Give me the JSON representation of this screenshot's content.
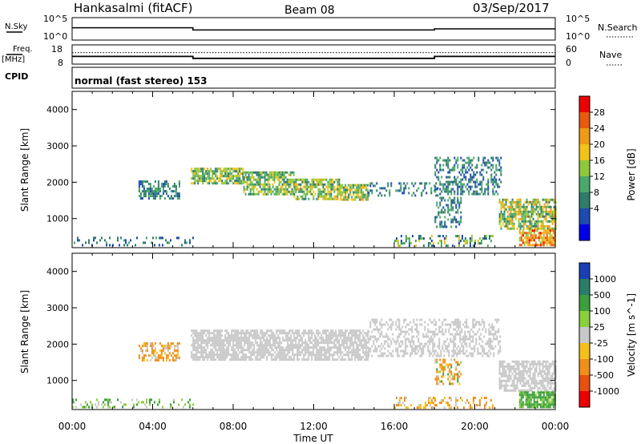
{
  "header": {
    "station": "Hankasalmi (fitACF)",
    "beam": "Beam 08",
    "date": "03/Sep/2017"
  },
  "top_panels": {
    "nsky_label": "N.Sky",
    "nsky_ticks": [
      "10^5",
      "10^0"
    ],
    "nsearch_label": "N.Search",
    "nsearch_ticks": [
      "10^5",
      "10^0"
    ],
    "freq_label_1": "Freq.",
    "freq_label_2": "[MHz]",
    "freq_ticks": [
      "18",
      "8"
    ],
    "nave_label": "Nave",
    "nave_ticks": [
      "60",
      "0"
    ],
    "cpid_label": "CPID",
    "cpid_text": "normal (fast stereo) 153"
  },
  "axes": {
    "xlabel": "Time UT",
    "x_ticks": [
      "00:00",
      "04:00",
      "08:00",
      "12:00",
      "16:00",
      "20:00",
      "00:00"
    ],
    "ylabel": "Slant Range [km]",
    "y_ticks": [
      "1000",
      "2000",
      "3000",
      "4000"
    ]
  },
  "power_scale": {
    "label": "Power [dB]",
    "ticks": [
      "4",
      "8",
      "12",
      "16",
      "20",
      "24",
      "28"
    ],
    "colors": [
      "#0000e8",
      "#1e4bb0",
      "#2e7d6a",
      "#4aa86a",
      "#8fc93a",
      "#f2c318",
      "#f29a18",
      "#e85a10",
      "#ee0000"
    ]
  },
  "velocity_scale": {
    "label": "Velocity [m s^-1]",
    "ticks": [
      "1000",
      "500",
      "100",
      "25",
      "-25",
      "-100",
      "-500",
      "-1000"
    ],
    "colors": [
      "#1a3fb5",
      "#2a7d6a",
      "#3c9e3c",
      "#8ad03a",
      "#c8c8c8",
      "#f5c01a",
      "#f0901a",
      "#e85010",
      "#ee0000"
    ]
  },
  "chart_data": [
    {
      "type": "line",
      "title": "N.Sky / N.Search",
      "x_range_hours": [
        0,
        24
      ],
      "segments": [
        {
          "from": 0,
          "to": 6,
          "level": 0.45
        },
        {
          "from": 6,
          "to": 18,
          "level": 0.55
        },
        {
          "from": 18,
          "to": 24,
          "level": 0.5
        }
      ]
    },
    {
      "type": "line",
      "title": "Freq. [MHz] / Nave",
      "x_range_hours": [
        0,
        24
      ],
      "ylim": [
        8,
        18
      ],
      "segments": [
        {
          "from": 0,
          "to": 6,
          "value": 12
        },
        {
          "from": 6,
          "to": 18,
          "value": 11
        },
        {
          "from": 18,
          "to": 24,
          "value": 12
        }
      ],
      "nave_level": 14
    },
    {
      "type": "heatmap",
      "title": "Power [dB]",
      "xlabel": "Time UT",
      "ylabel": "Slant Range [km]",
      "x_range_hours": [
        0,
        24
      ],
      "ylim": [
        200,
        4500
      ],
      "regions": [
        {
          "t0": 0.0,
          "t1": 6.0,
          "r0": 250,
          "r1": 500,
          "pmin": 4,
          "pmax": 12,
          "density": 0.25
        },
        {
          "t0": 3.3,
          "t1": 5.3,
          "r0": 1550,
          "r1": 2050,
          "pmin": 4,
          "pmax": 14,
          "density": 0.5
        },
        {
          "t0": 5.9,
          "t1": 8.5,
          "r0": 1950,
          "r1": 2400,
          "pmin": 8,
          "pmax": 22,
          "density": 0.75
        },
        {
          "t0": 8.5,
          "t1": 11.0,
          "r0": 1650,
          "r1": 2300,
          "pmin": 8,
          "pmax": 20,
          "density": 0.75
        },
        {
          "t0": 11.0,
          "t1": 13.3,
          "r0": 1550,
          "r1": 2100,
          "pmin": 8,
          "pmax": 22,
          "density": 0.7
        },
        {
          "t0": 13.3,
          "t1": 14.7,
          "r0": 1550,
          "r1": 1950,
          "pmin": 8,
          "pmax": 22,
          "density": 0.8
        },
        {
          "t0": 14.7,
          "t1": 18.2,
          "r0": 1650,
          "r1": 2000,
          "pmin": 4,
          "pmax": 12,
          "density": 0.3
        },
        {
          "t0": 18.0,
          "t1": 21.3,
          "r0": 1700,
          "r1": 2700,
          "pmin": 4,
          "pmax": 14,
          "density": 0.45
        },
        {
          "t0": 18.0,
          "t1": 19.3,
          "r0": 800,
          "r1": 1600,
          "pmin": 4,
          "pmax": 14,
          "density": 0.35
        },
        {
          "t0": 21.2,
          "t1": 24.0,
          "r0": 700,
          "r1": 1550,
          "pmin": 8,
          "pmax": 24,
          "density": 0.7
        },
        {
          "t0": 22.2,
          "t1": 24.0,
          "r0": 250,
          "r1": 700,
          "pmin": 16,
          "pmax": 30,
          "density": 0.8
        },
        {
          "t0": 16.0,
          "t1": 21.0,
          "r0": 250,
          "r1": 550,
          "pmin": 4,
          "pmax": 20,
          "density": 0.3
        }
      ]
    },
    {
      "type": "heatmap",
      "title": "Velocity [m s^-1]",
      "xlabel": "Time UT",
      "ylabel": "Slant Range [km]",
      "x_range_hours": [
        0,
        24
      ],
      "ylim": [
        200,
        4500
      ],
      "regions": [
        {
          "t0": 0.0,
          "t1": 6.0,
          "r0": 250,
          "r1": 500,
          "vmin": -25,
          "vmax": 200,
          "density": 0.25
        },
        {
          "t0": 3.3,
          "t1": 5.3,
          "r0": 1550,
          "r1": 2050,
          "vmin": -300,
          "vmax": 25,
          "density": 0.5
        },
        {
          "t0": 5.9,
          "t1": 14.7,
          "r0": 1600,
          "r1": 2400,
          "vmin": -20,
          "vmax": 20,
          "density": 0.75
        },
        {
          "t0": 14.7,
          "t1": 21.3,
          "r0": 1650,
          "r1": 2700,
          "vmin": -25,
          "vmax": 25,
          "density": 0.45
        },
        {
          "t0": 18.0,
          "t1": 19.3,
          "r0": 900,
          "r1": 1600,
          "vmin": -500,
          "vmax": 200,
          "density": 0.35
        },
        {
          "t0": 21.2,
          "t1": 24.0,
          "r0": 700,
          "r1": 1550,
          "vmin": -20,
          "vmax": 20,
          "density": 0.7
        },
        {
          "t0": 22.2,
          "t1": 24.0,
          "r0": 250,
          "r1": 700,
          "vmin": 30,
          "vmax": 300,
          "density": 0.8
        },
        {
          "t0": 16.0,
          "t1": 21.0,
          "r0": 250,
          "r1": 550,
          "vmin": -200,
          "vmax": 25,
          "density": 0.3
        }
      ]
    }
  ]
}
